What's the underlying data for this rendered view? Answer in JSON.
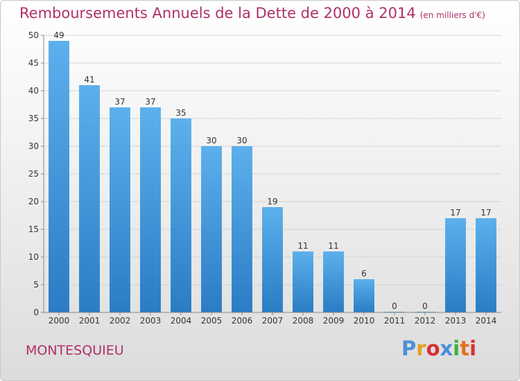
{
  "chart_data": {
    "type": "bar",
    "title": "Remboursements Annuels de la Dette de 2000 à 2014",
    "subtitle": "(en milliers d'€)",
    "categories": [
      "2000",
      "2001",
      "2002",
      "2003",
      "2004",
      "2005",
      "2006",
      "2007",
      "2008",
      "2009",
      "2010",
      "2011",
      "2012",
      "2013",
      "2014"
    ],
    "values": [
      49,
      41,
      37,
      37,
      35,
      30,
      30,
      19,
      11,
      11,
      6,
      0,
      0,
      17,
      17
    ],
    "xlabel": "",
    "ylabel": "",
    "ylim": [
      0,
      50
    ],
    "yticks": [
      0,
      5,
      10,
      15,
      20,
      25,
      30,
      35,
      40,
      45,
      50
    ],
    "grid": true,
    "bar_color": "#4a9fe0"
  },
  "footer": {
    "commune": "MONTESQUIEU",
    "logo_letters": [
      "P",
      "r",
      "o",
      "x",
      "i",
      "t",
      "i"
    ],
    "logo_colors": [
      "#4a90d9",
      "#e0a020",
      "#d83030",
      "#4a90d9",
      "#40b040",
      "#e07020",
      "#d83030"
    ]
  }
}
